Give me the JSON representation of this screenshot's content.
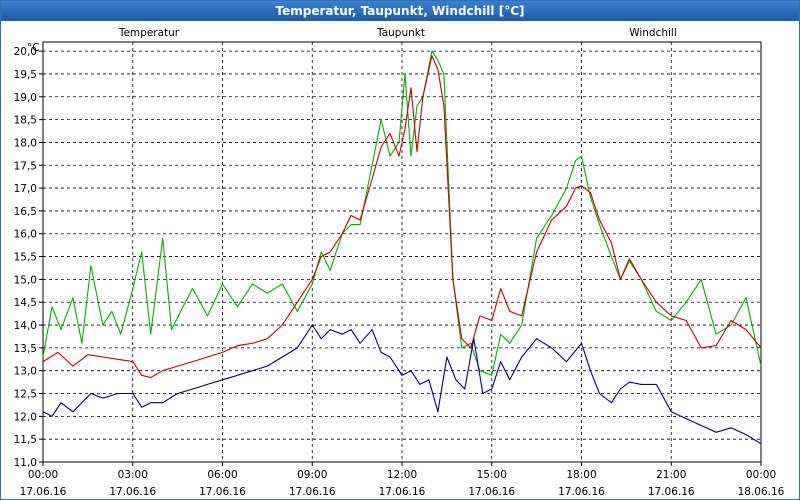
{
  "chart_data": {
    "type": "line",
    "title": "Temperatur, Taupunkt, Windchill [°C]",
    "yunit": "°C",
    "ylim": [
      11.0,
      20.2
    ],
    "yticks": [
      "11,0",
      "11,5",
      "12,0",
      "12,5",
      "13,0",
      "13,5",
      "14,0",
      "14,5",
      "15,0",
      "15,5",
      "16,0",
      "16,5",
      "17,0",
      "17,5",
      "18,0",
      "18,5",
      "19,0",
      "19,5",
      "20,0"
    ],
    "xlim": [
      0,
      24
    ],
    "xticks": [
      {
        "time": "00:00",
        "date": "17.06.16"
      },
      {
        "time": "03:00",
        "date": "17.06.16"
      },
      {
        "time": "06:00",
        "date": "17.06.16"
      },
      {
        "time": "09:00",
        "date": "17.06.16"
      },
      {
        "time": "12:00",
        "date": "17.06.16"
      },
      {
        "time": "15:00",
        "date": "17.06.16"
      },
      {
        "time": "18:00",
        "date": "17.06.16"
      },
      {
        "time": "21:00",
        "date": "17.06.16"
      },
      {
        "time": "00:00",
        "date": "18.06.16"
      }
    ],
    "grid": true,
    "series": [
      {
        "name": "Temperatur",
        "color": "#cc0000",
        "x": [
          0,
          0.5,
          1,
          1.5,
          2,
          2.5,
          3,
          3.3,
          3.6,
          4,
          4.5,
          5,
          5.5,
          6,
          6.5,
          7,
          7.5,
          8,
          8.5,
          9,
          9.3,
          9.6,
          10,
          10.3,
          10.6,
          11,
          11.3,
          11.6,
          11.9,
          12.1,
          12.3,
          12.5,
          12.7,
          13,
          13.2,
          13.4,
          13.7,
          14,
          14.3,
          14.6,
          15,
          15.3,
          15.6,
          16,
          16.5,
          17,
          17.5,
          17.8,
          18,
          18.3,
          18.6,
          19,
          19.3,
          19.6,
          20,
          20.5,
          21,
          21.5,
          22,
          22.5,
          23,
          23.5,
          24
        ],
        "values": [
          13.2,
          13.4,
          13.1,
          13.35,
          13.3,
          13.25,
          13.2,
          12.9,
          12.85,
          13.0,
          13.1,
          13.2,
          13.3,
          13.4,
          13.55,
          13.6,
          13.7,
          14.0,
          14.5,
          15.0,
          15.5,
          15.6,
          16.0,
          16.4,
          16.3,
          17.2,
          17.9,
          18.2,
          17.7,
          18.3,
          19.2,
          17.8,
          19.0,
          19.9,
          19.6,
          18.8,
          15.0,
          13.7,
          13.5,
          14.2,
          14.1,
          14.8,
          14.3,
          14.2,
          15.6,
          16.3,
          16.6,
          17.0,
          17.05,
          16.9,
          16.3,
          15.8,
          15.0,
          15.45,
          15.0,
          14.5,
          14.2,
          14.1,
          13.5,
          13.55,
          14.1,
          13.9,
          13.5
        ]
      },
      {
        "name": "Taupunkt",
        "color": "#00008b",
        "x": [
          0,
          0.3,
          0.6,
          1,
          1.3,
          1.6,
          2,
          2.5,
          3,
          3.3,
          3.6,
          4,
          4.5,
          5,
          5.5,
          6,
          6.5,
          7,
          7.5,
          8,
          8.5,
          8.8,
          9,
          9.3,
          9.6,
          10,
          10.3,
          10.6,
          11,
          11.3,
          11.6,
          12,
          12.3,
          12.6,
          12.9,
          13.2,
          13.5,
          13.8,
          14.1,
          14.4,
          14.7,
          15,
          15.3,
          15.6,
          16,
          16.5,
          17,
          17.5,
          18,
          18.3,
          18.6,
          19,
          19.3,
          19.6,
          20,
          20.5,
          21,
          21.5,
          22,
          22.5,
          23,
          23.5,
          24
        ],
        "values": [
          12.1,
          12.0,
          12.3,
          12.1,
          12.3,
          12.5,
          12.4,
          12.5,
          12.5,
          12.2,
          12.3,
          12.3,
          12.5,
          12.6,
          12.7,
          12.8,
          12.9,
          13.0,
          13.1,
          13.3,
          13.5,
          13.8,
          14.0,
          13.7,
          13.9,
          13.8,
          13.9,
          13.6,
          13.9,
          13.4,
          13.3,
          12.9,
          13.0,
          12.7,
          12.8,
          12.1,
          13.3,
          12.8,
          12.6,
          13.7,
          12.5,
          12.6,
          13.2,
          12.8,
          13.3,
          13.7,
          13.5,
          13.2,
          13.6,
          13.0,
          12.5,
          12.3,
          12.6,
          12.75,
          12.7,
          12.7,
          12.1,
          11.95,
          11.8,
          11.65,
          11.75,
          11.6,
          11.4
        ]
      },
      {
        "name": "Windchill",
        "color": "#00b000",
        "x": [
          0,
          0.3,
          0.6,
          1,
          1.3,
          1.6,
          2,
          2.3,
          2.6,
          3,
          3.3,
          3.6,
          4,
          4.3,
          4.6,
          5,
          5.5,
          6,
          6.5,
          7,
          7.5,
          8,
          8.5,
          9,
          9.3,
          9.6,
          10,
          10.3,
          10.6,
          11,
          11.3,
          11.6,
          11.9,
          12.1,
          12.3,
          12.5,
          12.7,
          13,
          13.2,
          13.4,
          13.7,
          14,
          14.3,
          14.6,
          15,
          15.3,
          15.6,
          16,
          16.5,
          17,
          17.5,
          17.8,
          18,
          18.3,
          18.6,
          19,
          19.3,
          19.6,
          20,
          20.5,
          21,
          21.5,
          22,
          22.5,
          23,
          23.5,
          24
        ],
        "values": [
          13.3,
          14.4,
          13.9,
          14.6,
          13.6,
          15.3,
          14.0,
          14.3,
          13.8,
          14.8,
          15.6,
          13.8,
          15.9,
          13.9,
          14.3,
          14.8,
          14.2,
          14.9,
          14.4,
          14.9,
          14.7,
          14.9,
          14.3,
          14.9,
          15.6,
          15.2,
          16.0,
          16.2,
          16.2,
          17.5,
          18.5,
          17.7,
          18.0,
          19.5,
          17.7,
          18.8,
          19.0,
          20.0,
          19.8,
          19.5,
          15.0,
          13.5,
          13.6,
          13.0,
          12.9,
          13.8,
          13.6,
          14.0,
          15.9,
          16.4,
          17.0,
          17.6,
          17.7,
          16.8,
          16.2,
          15.5,
          15.0,
          15.4,
          15.0,
          14.3,
          14.1,
          14.5,
          15.0,
          13.8,
          14.0,
          14.6,
          13.1
        ]
      }
    ]
  }
}
